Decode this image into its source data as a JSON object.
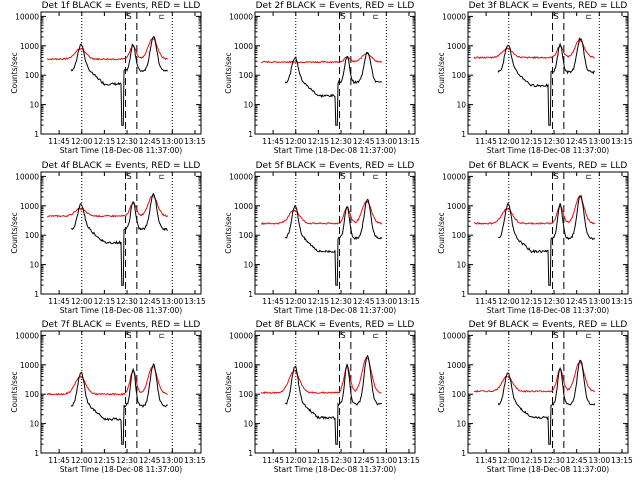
{
  "colors": {
    "events": "#000000",
    "lld": "#dd1111",
    "frame": "#000000",
    "background": "#ffffff"
  },
  "chart_data": [
    {
      "type": "line",
      "title": "Det 1f BLACK = Events, RED = LLD"
    },
    {
      "type": "line",
      "title": "Det 2f BLACK = Events, RED = LLD"
    },
    {
      "type": "line",
      "title": "Det 3f BLACK = Events, RED = LLD"
    },
    {
      "type": "line",
      "title": "Det 4f BLACK = Events, RED = LLD"
    },
    {
      "type": "line",
      "title": "Det 5f BLACK = Events, RED = LLD"
    },
    {
      "type": "line",
      "title": "Det 6f BLACK = Events, RED = LLD"
    },
    {
      "type": "line",
      "title": "Det 7f BLACK = Events, RED = LLD"
    },
    {
      "type": "line",
      "title": "Det 8f BLACK = Events, RED = LLD"
    },
    {
      "type": "line",
      "title": "Det 9f BLACK = Events, RED = LLD"
    }
  ],
  "common": {
    "xlabel": "Start Time (18-Dec-08 11:37:00)",
    "ylabel": "Counts/sec",
    "x_range_minutes": [
      -4,
      102
    ],
    "x_ticks": [
      {
        "t": 8,
        "label": "11:45"
      },
      {
        "t": 23,
        "label": "12:00"
      },
      {
        "t": 38,
        "label": "12:15"
      },
      {
        "t": 53,
        "label": "12:30"
      },
      {
        "t": 68,
        "label": "12:45"
      },
      {
        "t": 83,
        "label": "13:00"
      },
      {
        "t": 98,
        "label": "13:15"
      }
    ],
    "y_ticks": [
      "1",
      "10",
      "100",
      "1000",
      "10000"
    ],
    "y_range_log10": [
      0,
      4.15
    ],
    "dotted_lines_minutes": [
      23,
      83
    ],
    "dashed_lines_minutes": [
      52,
      59.5
    ],
    "markers": [
      {
        "t": 54.5,
        "symbol": "S"
      },
      {
        "t": 76,
        "symbol": "⊏"
      }
    ]
  },
  "series_shape": {
    "red": {
      "base_log10": [
        2.55,
        2.45,
        2.6,
        2.65,
        2.4,
        2.4,
        2.0,
        2.05,
        2.1
      ],
      "peak1_log10": [
        2.9,
        2.45,
        2.9,
        2.9,
        2.85,
        2.9,
        2.6,
        2.8,
        2.6
      ],
      "peak2_log10": [
        3.0,
        2.6,
        3.0,
        3.1,
        2.95,
        3.0,
        2.8,
        2.95,
        2.85
      ],
      "peak3_log10": [
        3.25,
        2.75,
        3.2,
        3.35,
        3.15,
        3.3,
        2.95,
        3.25,
        3.1
      ]
    },
    "black": {
      "base_log10": [
        2.15,
        1.75,
        2.1,
        2.2,
        1.9,
        1.9,
        1.6,
        1.65,
        1.65
      ]
    }
  }
}
